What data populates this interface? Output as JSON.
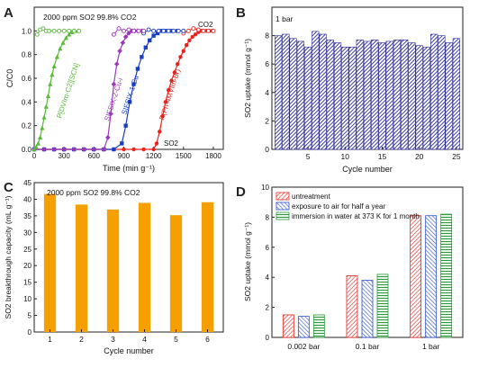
{
  "chart_data": [
    {
      "panel": "A",
      "type": "line",
      "annotation": "2000 ppm SO2 99.8% CO2",
      "xlabel": "Time (min g⁻¹)",
      "ylabel": "C/C0",
      "xlim": [
        0,
        1900
      ],
      "ylim": [
        0,
        1.2
      ],
      "xticks": [
        "0",
        "300",
        "600",
        "900",
        "1200",
        "1500",
        "1800"
      ],
      "yticks": [
        "0.0",
        "0.2",
        "0.4",
        "0.6",
        "0.8",
        "1.0"
      ],
      "labels": {
        "co2": "CO2",
        "so2": "SO2"
      },
      "series": [
        {
          "name": "P(Ph-4MVIm-Br)",
          "color": "#e8221c",
          "marker": "circle",
          "so2_x": [
            0,
            100,
            200,
            300,
            400,
            500,
            600,
            700,
            800,
            900,
            1000,
            1100,
            1200,
            1230,
            1260,
            1290,
            1320,
            1350,
            1380,
            1410,
            1440,
            1470,
            1500,
            1530,
            1560,
            1590,
            1620,
            1650,
            1680,
            1700,
            1730,
            1760,
            1790
          ],
          "so2_y": [
            0,
            0,
            0,
            0,
            0,
            0,
            0,
            0,
            0,
            0,
            0,
            0,
            0,
            0.05,
            0.15,
            0.28,
            0.4,
            0.5,
            0.58,
            0.65,
            0.72,
            0.78,
            0.83,
            0.88,
            0.92,
            0.95,
            0.97,
            0.99,
            1.0,
            1.0,
            1.0,
            1.0,
            1.0
          ],
          "co2_x": [
            1500,
            1550,
            1600,
            1650,
            1700,
            1750,
            1800
          ],
          "co2_y": [
            0.98,
            1.0,
            1.02,
            1.01,
            1.0,
            1.0,
            1.0
          ]
        },
        {
          "name": "SIFSIX-1-Cu",
          "color": "#1a3ec0",
          "marker": "square",
          "so2_x": [
            0,
            100,
            200,
            300,
            400,
            500,
            600,
            700,
            800,
            880,
            920,
            960,
            1000,
            1040,
            1080,
            1120,
            1160,
            1200,
            1240,
            1280,
            1320,
            1380,
            1440
          ],
          "so2_y": [
            0,
            0,
            0,
            0,
            0,
            0,
            0,
            0,
            0,
            0.05,
            0.2,
            0.4,
            0.55,
            0.68,
            0.78,
            0.86,
            0.92,
            0.96,
            0.98,
            1.0,
            1.0,
            1.0,
            1.0
          ],
          "co2_x": [
            1100,
            1150,
            1200,
            1250,
            1300,
            1350,
            1400,
            1450,
            1500
          ],
          "co2_y": [
            0.98,
            1.01,
            1.0,
            1.0,
            1.0,
            1.0,
            1.0,
            1.0,
            1.0
          ]
        },
        {
          "name": "SIFSIX-2-Cu-i",
          "color": "#9a3ab8",
          "marker": "diamond",
          "so2_x": [
            0,
            100,
            200,
            300,
            400,
            500,
            600,
            700,
            740,
            770,
            800,
            830,
            860,
            890,
            920,
            950,
            980,
            1010,
            1040,
            1080
          ],
          "so2_y": [
            0,
            0,
            0,
            0,
            0,
            0,
            0,
            0,
            0.1,
            0.3,
            0.55,
            0.72,
            0.83,
            0.9,
            0.95,
            0.98,
            1.0,
            1.0,
            1.0,
            1.0
          ],
          "co2_x": [
            800,
            850,
            900,
            950,
            1000,
            1050,
            1100
          ],
          "co2_y": [
            0.97,
            1.02,
            1.0,
            1.01,
            1.0,
            1.0,
            1.0
          ]
        },
        {
          "name": "P[DVIm-C2][SCN]",
          "color": "#59b93a",
          "marker": "triangle",
          "so2_x": [
            0,
            20,
            40,
            60,
            80,
            100,
            120,
            140,
            160,
            180,
            200,
            230,
            260,
            290,
            320,
            350,
            380,
            410,
            440
          ],
          "so2_y": [
            0,
            0.02,
            0.05,
            0.1,
            0.18,
            0.27,
            0.36,
            0.45,
            0.55,
            0.63,
            0.7,
            0.78,
            0.85,
            0.9,
            0.94,
            0.97,
            0.99,
            1.0,
            1.0
          ],
          "co2_x": [
            30,
            60,
            90,
            120,
            150,
            200,
            250,
            300,
            350,
            400,
            450
          ],
          "co2_y": [
            0.97,
            1.01,
            1.02,
            1.0,
            1.0,
            1.0,
            1.0,
            1.0,
            1.0,
            1.0,
            1.0
          ]
        }
      ]
    },
    {
      "panel": "B",
      "type": "bar",
      "annotation": "1 bar",
      "xlabel": "Cycle number",
      "ylabel": "SO2 uptake (mmol g⁻¹)",
      "ylim": [
        0,
        10
      ],
      "xticks": [
        "5",
        "10",
        "15",
        "20",
        "25"
      ],
      "yticks": [
        "0",
        "2",
        "4",
        "6",
        "8"
      ],
      "categories": [
        "1",
        "2",
        "3",
        "4",
        "5",
        "6",
        "7",
        "8",
        "9",
        "10",
        "11",
        "12",
        "13",
        "14",
        "15",
        "16",
        "17",
        "18",
        "19",
        "20",
        "21",
        "22",
        "23",
        "24",
        "25"
      ],
      "values": [
        8.0,
        8.1,
        7.8,
        7.6,
        7.2,
        8.3,
        8.1,
        7.7,
        7.5,
        7.2,
        7.2,
        7.7,
        7.6,
        7.7,
        7.5,
        7.6,
        7.7,
        7.7,
        7.5,
        7.3,
        7.2,
        8.1,
        8.0,
        7.5,
        7.8
      ],
      "color": "#2a2a9a"
    },
    {
      "panel": "C",
      "type": "bar",
      "annotation": "2000 ppm SO2 99.8% CO2",
      "xlabel": "Cycle number",
      "ylabel": "SO2 breakthrough capacity (mL g⁻¹)",
      "ylim": [
        0,
        45
      ],
      "yticks": [
        "0",
        "5",
        "10",
        "15",
        "20",
        "25",
        "30",
        "35",
        "40",
        "45"
      ],
      "categories": [
        "1",
        "2",
        "3",
        "4",
        "5",
        "6"
      ],
      "values": [
        41.6,
        38.4,
        36.9,
        38.9,
        35.2,
        39.1
      ],
      "color": "#f5a000"
    },
    {
      "panel": "D",
      "type": "bar",
      "xlabel": "",
      "ylabel": "SO2 uptake (mmol g⁻¹)",
      "ylim": [
        0,
        10
      ],
      "yticks": [
        "0",
        "2",
        "4",
        "6",
        "8",
        "10"
      ],
      "categories": [
        "0.002 bar",
        "0.1 bar",
        "1 bar"
      ],
      "legend_position": "top-left",
      "series": [
        {
          "name": "untreatment",
          "color": "#e8221c",
          "values": [
            1.5,
            4.1,
            8.1
          ]
        },
        {
          "name": "exposure to air for half a year",
          "color": "#2a4ec8",
          "values": [
            1.4,
            3.8,
            8.1
          ]
        },
        {
          "name": "immersion in water at 373 K for 1 month",
          "color": "#2a9a3a",
          "values": [
            1.5,
            4.2,
            8.2
          ]
        }
      ]
    }
  ],
  "panel_letters": [
    "A",
    "B",
    "C",
    "D"
  ]
}
